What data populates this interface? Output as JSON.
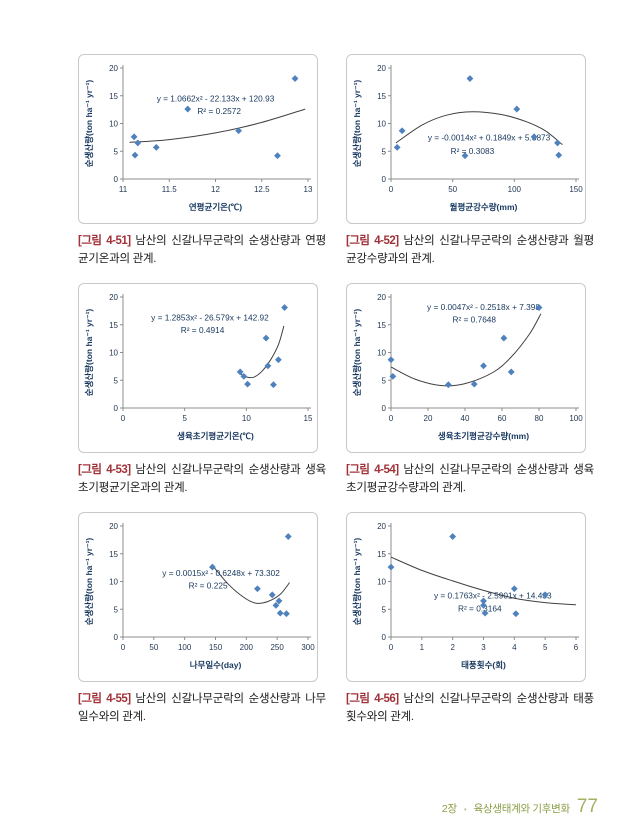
{
  "colors": {
    "marker": "#4f81bd",
    "curve": "#404040",
    "axis": "#8c8c8c",
    "tick_text": "#1f3550",
    "axis_title": "#17375e",
    "eq_text": "#17375e",
    "fig_label": "#a0333a",
    "box_border": "#c9c9c9",
    "footer_text": "#8a9e45",
    "footer_page": "#a3b163"
  },
  "footer": {
    "chapter": "2장",
    "separator": "•",
    "section": "육상생태계와 기후변화",
    "page_number": "77"
  },
  "figures": [
    {
      "label": "[그림 4-51]",
      "caption": " 남산의 신갈나무군락의 순생산량과 연평균기온과의 관계."
    },
    {
      "label": "[그림 4-52]",
      "caption": " 남산의 신갈나무군락의 순생산량과 월평균강수량과의 관계."
    },
    {
      "label": "[그림 4-53]",
      "caption": " 남산의 신갈나무군락의 순생산량과 생육초기평균기온과의 관계."
    },
    {
      "label": "[그림 4-54]",
      "caption": " 남산의 신갈나무군락의 순생산량과 생육초기평균강수량과의 관계."
    },
    {
      "label": "[그림 4-55]",
      "caption": " 남산의 신갈나무군락의 순생산량과 나무일수와의 관계."
    },
    {
      "label": "[그림 4-56]",
      "caption": " 남산의 신갈나무군락의 순생산량과 태풍횟수와의 관계."
    }
  ],
  "chart_data": [
    {
      "type": "scatter",
      "title": "",
      "xlabel": "연평균기온(℃)",
      "ylabel": "순생산량(ton ha⁻¹  yr⁻¹)",
      "xlim": [
        11,
        13
      ],
      "ylim": [
        0,
        20
      ],
      "xticks": [
        11,
        11.5,
        12,
        12.5,
        13
      ],
      "xtick_labels": [
        "11",
        "11.5",
        "12",
        "12.5",
        "13"
      ],
      "yticks": [
        0,
        5,
        10,
        15,
        20
      ],
      "ytick_labels": [
        "0",
        "5",
        "10",
        "15",
        "20"
      ],
      "points": [
        [
          11.12,
          7.6
        ],
        [
          11.13,
          4.3
        ],
        [
          11.16,
          6.5
        ],
        [
          11.36,
          5.7
        ],
        [
          11.7,
          12.6
        ],
        [
          12.25,
          8.7
        ],
        [
          12.67,
          4.2
        ],
        [
          12.86,
          18.1
        ]
      ],
      "equation": "y = 1.0662x² - 22.133x + 120.93",
      "r2": "R² = 0.2572",
      "eq_pos": [
        0.5,
        0.3
      ],
      "r2_pos": [
        0.52,
        0.415
      ],
      "curve": [
        [
          11.07,
          6.6
        ],
        [
          11.5,
          7.1
        ],
        [
          12.0,
          8.3
        ],
        [
          12.5,
          10.2
        ],
        [
          12.97,
          12.6
        ]
      ],
      "grid": false,
      "legend": "none"
    },
    {
      "type": "scatter",
      "title": "",
      "xlabel": "월평균강수량(mm)",
      "ylabel": "순생산량(ton ha⁻¹  yr⁻¹)",
      "xlim": [
        0,
        150
      ],
      "ylim": [
        0,
        20
      ],
      "xticks": [
        0,
        50,
        100,
        150
      ],
      "xtick_labels": [
        "0",
        "50",
        "100",
        "150"
      ],
      "yticks": [
        0,
        5,
        10,
        15,
        20
      ],
      "ytick_labels": [
        "0",
        "5",
        "10",
        "15",
        "20"
      ],
      "points": [
        [
          5,
          5.7
        ],
        [
          9,
          8.7
        ],
        [
          60,
          4.2
        ],
        [
          64,
          18.1
        ],
        [
          102,
          12.6
        ],
        [
          116,
          7.6
        ],
        [
          135,
          6.5
        ],
        [
          136,
          4.3
        ]
      ],
      "equation": "y = -0.0014x² + 0.1849x + 5.8873",
      "r2": "R² = 0.3083",
      "eq_pos": [
        0.53,
        0.655
      ],
      "r2_pos": [
        0.44,
        0.775
      ],
      "curve": [
        [
          4,
          6.5
        ],
        [
          25,
          9.7
        ],
        [
          45,
          11.5
        ],
        [
          66,
          12.1
        ],
        [
          90,
          11.6
        ],
        [
          110,
          10.3
        ],
        [
          125,
          8.7
        ],
        [
          139,
          6.2
        ]
      ],
      "grid": false,
      "legend": "none"
    },
    {
      "type": "scatter",
      "title": "",
      "xlabel": "생육초기평균기온(℃)",
      "ylabel": "순생산량(ton ha⁻¹  yr⁻¹)",
      "xlim": [
        0,
        15
      ],
      "ylim": [
        0,
        20
      ],
      "xticks": [
        0,
        5,
        10,
        15
      ],
      "xtick_labels": [
        "0",
        "5",
        "10",
        "15"
      ],
      "yticks": [
        0,
        5,
        10,
        15,
        20
      ],
      "ytick_labels": [
        "0",
        "5",
        "10",
        "15",
        "20"
      ],
      "points": [
        [
          9.5,
          6.5
        ],
        [
          9.8,
          5.7
        ],
        [
          10.1,
          4.3
        ],
        [
          11.6,
          12.6
        ],
        [
          11.75,
          7.6
        ],
        [
          12.2,
          4.2
        ],
        [
          12.6,
          8.7
        ],
        [
          13.1,
          18.1
        ]
      ],
      "equation": "y = 1.2853x² - 26.579x + 142.92",
      "r2": "R² = 0.4914",
      "eq_pos": [
        0.47,
        0.21
      ],
      "r2_pos": [
        0.43,
        0.325
      ],
      "curve": [
        [
          9.35,
          6.4
        ],
        [
          10.0,
          5.6
        ],
        [
          10.6,
          5.55
        ],
        [
          11.3,
          6.7
        ],
        [
          12.0,
          8.8
        ],
        [
          12.6,
          11.4
        ],
        [
          13.05,
          14.8
        ]
      ],
      "grid": false,
      "legend": "none"
    },
    {
      "type": "scatter",
      "title": "",
      "xlabel": "생육초기평균강수량(mm)",
      "ylabel": "순생산량(ton ha⁻¹  yr⁻¹)",
      "xlim": [
        0,
        100
      ],
      "ylim": [
        0,
        20
      ],
      "xticks": [
        0,
        20,
        40,
        60,
        80,
        100
      ],
      "xtick_labels": [
        "0",
        "20",
        "40",
        "60",
        "80",
        "100"
      ],
      "yticks": [
        0,
        5,
        10,
        15,
        20
      ],
      "ytick_labels": [
        "0",
        "5",
        "10",
        "15",
        "20"
      ],
      "points": [
        [
          0,
          8.7
        ],
        [
          1,
          5.7
        ],
        [
          31,
          4.2
        ],
        [
          45,
          4.3
        ],
        [
          50,
          7.6
        ],
        [
          61,
          12.6
        ],
        [
          65,
          6.5
        ],
        [
          80,
          18.1
        ]
      ],
      "equation": "y = 0.0047x² - 0.2518x + 7.398",
      "r2": "R² = 0.7648",
      "eq_pos": [
        0.5,
        0.115
      ],
      "r2_pos": [
        0.45,
        0.23
      ],
      "curve": [
        [
          0,
          7.4
        ],
        [
          13,
          5.2
        ],
        [
          27,
          4.05
        ],
        [
          40,
          4.4
        ],
        [
          55,
          6.4
        ],
        [
          65,
          9.2
        ],
        [
          75,
          13.4
        ],
        [
          81,
          17.0
        ]
      ],
      "grid": false,
      "legend": "none"
    },
    {
      "type": "scatter",
      "title": "",
      "xlabel": "나무일수(day)",
      "ylabel": "순생산량(ton ha⁻¹  yr⁻¹)",
      "xlim": [
        0,
        300
      ],
      "ylim": [
        0,
        20
      ],
      "xticks": [
        0,
        50,
        100,
        150,
        200,
        250,
        300
      ],
      "xtick_labels": [
        "0",
        "50",
        "100",
        "150",
        "200",
        "250",
        "300"
      ],
      "yticks": [
        0,
        5,
        10,
        15,
        20
      ],
      "ytick_labels": [
        "0",
        "5",
        "10",
        "15",
        "20"
      ],
      "points": [
        [
          145,
          12.6
        ],
        [
          218,
          8.7
        ],
        [
          242,
          7.6
        ],
        [
          248,
          5.7
        ],
        [
          253,
          6.5
        ],
        [
          255,
          4.3
        ],
        [
          265,
          4.2
        ],
        [
          268,
          18.1
        ]
      ],
      "equation": "y = 0.0015x² - 0.6248x + 73.302",
      "r2": "R² = 0.225",
      "eq_pos": [
        0.53,
        0.45
      ],
      "r2_pos": [
        0.46,
        0.565
      ],
      "curve": [
        [
          145,
          12.9
        ],
        [
          170,
          9.6
        ],
        [
          195,
          7.2
        ],
        [
          215,
          6.1
        ],
        [
          235,
          6.4
        ],
        [
          255,
          7.7
        ],
        [
          270,
          9.8
        ]
      ],
      "grid": false,
      "legend": "none"
    },
    {
      "type": "scatter",
      "title": "",
      "xlabel": "태풍횟수(회)",
      "ylabel": "순생산량(ton ha⁻¹  yr⁻¹)",
      "xlim": [
        0,
        6
      ],
      "ylim": [
        0,
        20
      ],
      "xticks": [
        0,
        1,
        2,
        3,
        4,
        5,
        6
      ],
      "xtick_labels": [
        "0",
        "1",
        "2",
        "3",
        "4",
        "5",
        "6"
      ],
      "yticks": [
        0,
        5,
        10,
        15,
        20
      ],
      "ytick_labels": [
        "0",
        "5",
        "10",
        "15",
        "20"
      ],
      "points": [
        [
          0,
          12.6
        ],
        [
          2,
          18.1
        ],
        [
          3,
          6.5
        ],
        [
          3,
          5.7
        ],
        [
          3.05,
          4.3
        ],
        [
          4,
          8.7
        ],
        [
          4.05,
          4.2
        ],
        [
          5,
          7.6
        ]
      ],
      "equation": "y = 0.1763x² - 2.5901x + 14.433",
      "r2": "R² = 0.3164",
      "eq_pos": [
        0.55,
        0.655
      ],
      "r2_pos": [
        0.48,
        0.77
      ],
      "curve": [
        [
          0,
          14.4
        ],
        [
          1,
          12.0
        ],
        [
          2,
          10.1
        ],
        [
          3,
          8.4
        ],
        [
          4,
          7.0
        ],
        [
          5,
          6.2
        ],
        [
          6,
          5.8
        ]
      ],
      "grid": false,
      "legend": "none"
    }
  ]
}
